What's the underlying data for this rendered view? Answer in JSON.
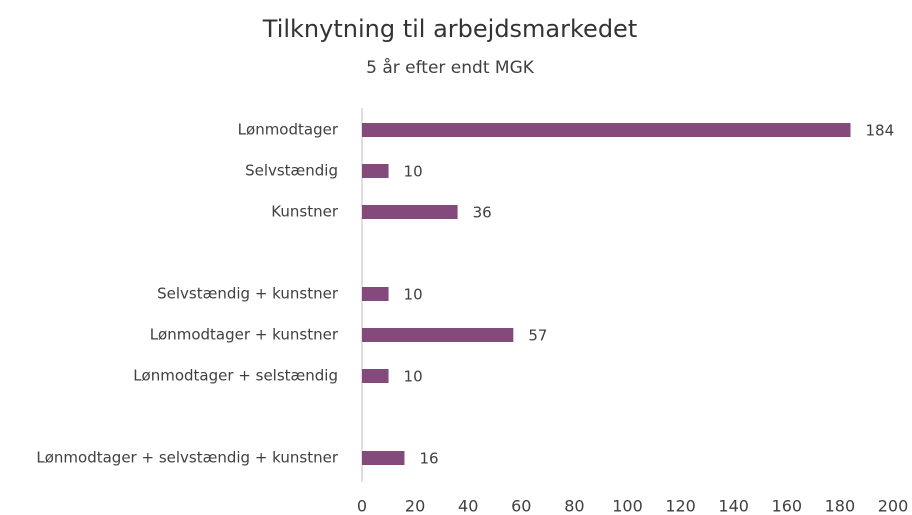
{
  "chart_data": {
    "type": "bar",
    "orientation": "horizontal",
    "title": "Tilknytning til arbejdsmarkedet",
    "subtitle": "5 år efter endt MGK",
    "categories": [
      "Lønmodtager",
      "Selvstændig",
      "Kunstner",
      null,
      "Selvstændig + kunstner",
      "Lønmodtager + kunstner",
      "Lønmodtager + selstændig",
      null,
      "Lønmodtager + selvstændig + kunstner"
    ],
    "values": [
      184,
      10,
      36,
      null,
      10,
      57,
      10,
      null,
      16
    ],
    "color": "#834a7b",
    "xlim": [
      0,
      200
    ],
    "xticks": [
      0,
      20,
      40,
      60,
      80,
      100,
      120,
      140,
      160,
      180,
      200
    ],
    "grid": false
  }
}
